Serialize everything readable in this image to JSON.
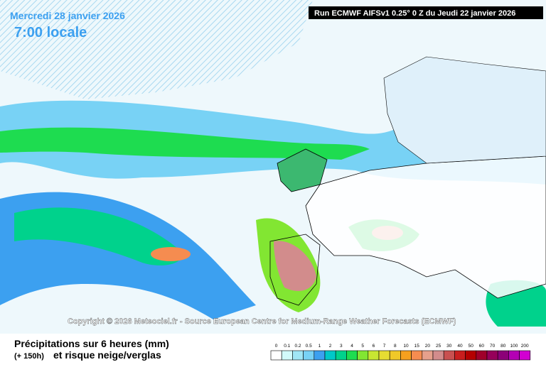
{
  "header": {
    "date": "Mercredi 28 janvier 2026",
    "time": "7:00 locale",
    "run": "Run ECMWF AIFSv1 0.25° 0 Z du Jeudi 22 janvier 2026"
  },
  "copyright": "Copyright © 2026 Meteociel.fr - Source European Centre for Medium-Range Weather Forecasts (ECMWF)",
  "footer": {
    "title": "Précipitations sur 6 heures (mm)",
    "lead": "(+ 150h)",
    "subtitle": "et risque neige/verglas"
  },
  "legend": [
    {
      "label": "0",
      "color": "#ffffff"
    },
    {
      "label": "0.1",
      "color": "#d2fafa"
    },
    {
      "label": "0.2",
      "color": "#a0e6f5"
    },
    {
      "label": "0.5",
      "color": "#78d2f5"
    },
    {
      "label": "1",
      "color": "#3ca0f0"
    },
    {
      "label": "2",
      "color": "#00c8c8"
    },
    {
      "label": "3",
      "color": "#00d28c"
    },
    {
      "label": "4",
      "color": "#1edc50"
    },
    {
      "label": "5",
      "color": "#82e632"
    },
    {
      "label": "6",
      "color": "#c8e632"
    },
    {
      "label": "7",
      "color": "#e6dc32"
    },
    {
      "label": "8",
      "color": "#f0c828"
    },
    {
      "label": "10",
      "color": "#f5a01e"
    },
    {
      "label": "15",
      "color": "#f58c50"
    },
    {
      "label": "20",
      "color": "#e6a08c"
    },
    {
      "label": "25",
      "color": "#d28c8c"
    },
    {
      "label": "30",
      "color": "#c85050"
    },
    {
      "label": "40",
      "color": "#c81e1e"
    },
    {
      "label": "50",
      "color": "#b40000"
    },
    {
      "label": "60",
      "color": "#a0002a"
    },
    {
      "label": "70",
      "color": "#96005a"
    },
    {
      "label": "80",
      "color": "#8c0078"
    },
    {
      "label": "100",
      "color": "#b400b4"
    },
    {
      "label": "200",
      "color": "#d200d2"
    }
  ]
}
